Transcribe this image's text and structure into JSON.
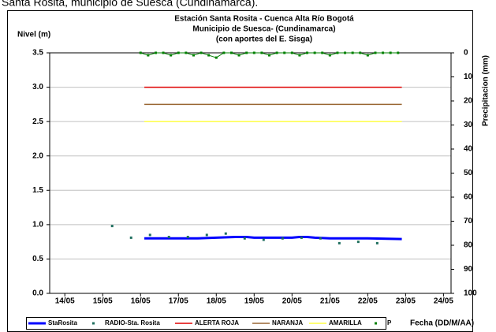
{
  "caption": "Santa Rosita, municipio de Suesca (Cundinamarca).",
  "chart_data": {
    "type": "line",
    "title": [
      "Estación Santa Rosita - Cuenca Alta Río Bogotá",
      "Municipio de Suesca- (Cundinamarca)",
      "(con aportes del  E. Sisga)"
    ],
    "y_label": "Nivel (m)",
    "y2_label": "Precipitacion (mm)",
    "x_label": "Fecha (DD/M/AA)",
    "xlim": [
      13.6,
      24.2
    ],
    "xticks": [
      {
        "value": 14,
        "label": "14/05"
      },
      {
        "value": 15,
        "label": "15/05"
      },
      {
        "value": 16,
        "label": "16/05"
      },
      {
        "value": 17,
        "label": "17/05"
      },
      {
        "value": 18,
        "label": "18/05"
      },
      {
        "value": 19,
        "label": "19/05"
      },
      {
        "value": 20,
        "label": "20/05"
      },
      {
        "value": 21,
        "label": "21/05"
      },
      {
        "value": 22,
        "label": "22/05"
      },
      {
        "value": 23,
        "label": "23/05"
      },
      {
        "value": 24,
        "label": "24/05"
      }
    ],
    "ylim": [
      0,
      3.5
    ],
    "yticks": [
      {
        "value": 0,
        "label": "0.0"
      },
      {
        "value": 0.5,
        "label": "0.5"
      },
      {
        "value": 1,
        "label": "1.0"
      },
      {
        "value": 1.5,
        "label": "1.5"
      },
      {
        "value": 2,
        "label": "2.0"
      },
      {
        "value": 2.5,
        "label": "2.5"
      },
      {
        "value": 3,
        "label": "3.0"
      },
      {
        "value": 3.5,
        "label": "3.5"
      }
    ],
    "y2lim": [
      100,
      0
    ],
    "y2ticks": [
      0,
      10,
      20,
      30,
      40,
      50,
      60,
      70,
      80,
      90,
      100
    ],
    "grid": true,
    "series": [
      {
        "name": "StaRosita",
        "color": "#0000ff",
        "style": "line",
        "x": [
          16.1,
          17,
          17.5,
          18,
          18.5,
          18.8,
          19,
          20,
          20.2,
          20.4,
          20.6,
          21,
          22,
          22.9
        ],
        "values": [
          0.8,
          0.8,
          0.8,
          0.81,
          0.82,
          0.82,
          0.81,
          0.81,
          0.82,
          0.82,
          0.81,
          0.8,
          0.8,
          0.79
        ]
      },
      {
        "name": "RADIO-Sta. Rosita",
        "color": "#1f6f5f",
        "style": "markers",
        "x": [
          15.25,
          15.75,
          16.25,
          16.75,
          17.25,
          17.75,
          18.25,
          18.75,
          19.25,
          19.75,
          20.25,
          20.75,
          21.25,
          21.75,
          22.25
        ],
        "values": [
          0.98,
          0.81,
          0.85,
          0.82,
          0.82,
          0.85,
          0.87,
          0.8,
          0.78,
          0.8,
          0.81,
          0.8,
          0.73,
          0.75,
          0.73
        ]
      },
      {
        "name": "ALERTA ROJA",
        "color": "#e00000",
        "style": "line",
        "x": [
          16.1,
          22.9
        ],
        "values": [
          3,
          3
        ]
      },
      {
        "name": "NARANJA",
        "color": "#996633",
        "style": "line",
        "x": [
          16.1,
          22.9
        ],
        "values": [
          2.75,
          2.75
        ]
      },
      {
        "name": "AMARILLA",
        "color": "#ffff44",
        "style": "line",
        "x": [
          16.1,
          22.9
        ],
        "values": [
          2.5,
          2.5
        ]
      },
      {
        "name": "P",
        "color": "#008000",
        "style": "markers",
        "axis": "y2",
        "x": [
          16.0,
          16.2,
          16.4,
          16.6,
          16.8,
          17.0,
          17.2,
          17.4,
          17.6,
          17.8,
          18.0,
          18.2,
          18.4,
          18.6,
          18.8,
          19.0,
          19.2,
          19.4,
          19.6,
          19.8,
          20.0,
          20.2,
          20.4,
          20.6,
          20.8,
          21.0,
          21.2,
          21.4,
          21.6,
          21.8,
          22.0,
          22.2,
          22.4,
          22.6,
          22.8
        ],
        "values": [
          0,
          1,
          0,
          0,
          1,
          0,
          0,
          1,
          0,
          1,
          2,
          0,
          0,
          1,
          0,
          0,
          0,
          1,
          0,
          0,
          0,
          1,
          0,
          0,
          0,
          1,
          0,
          0,
          0,
          0,
          1,
          0,
          0,
          0,
          0
        ]
      }
    ]
  }
}
